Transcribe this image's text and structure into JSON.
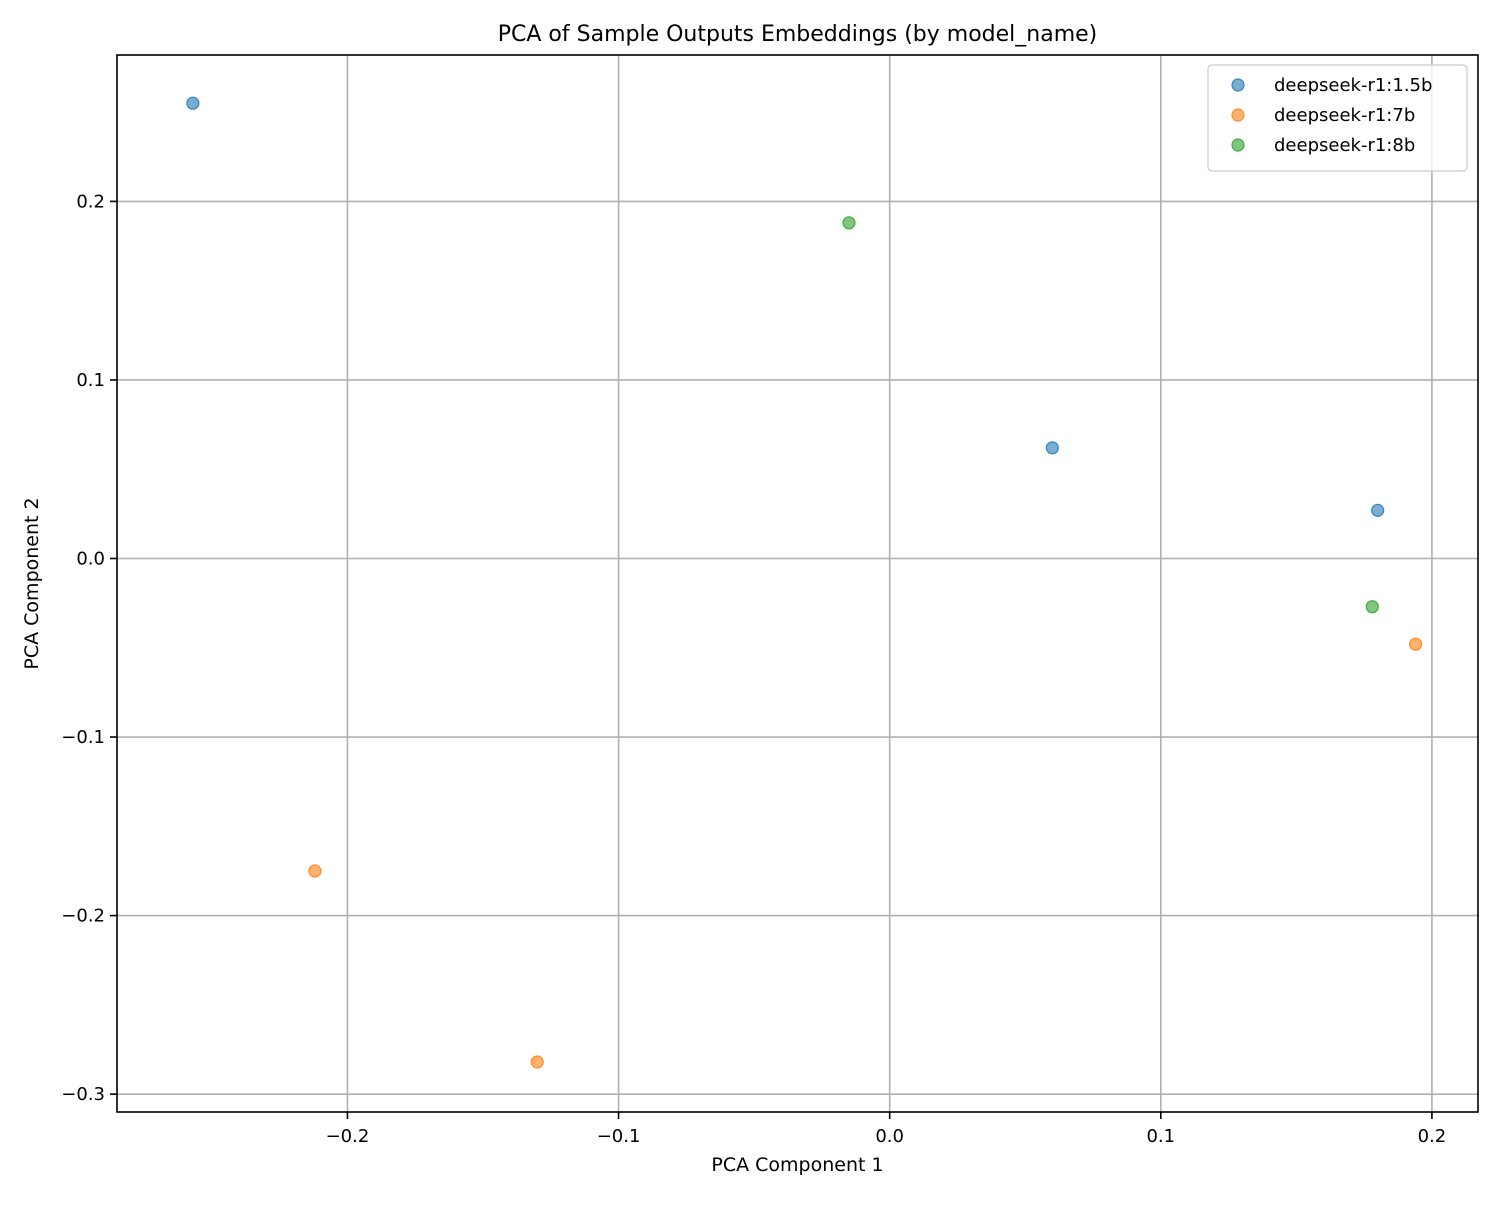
{
  "chart_data": {
    "type": "scatter",
    "title": "PCA of Sample Outputs Embeddings (by model_name)",
    "xlabel": "PCA Component 1",
    "ylabel": "PCA Component 2",
    "xlim": [
      -0.285,
      0.217
    ],
    "ylim": [
      -0.31,
      0.282
    ],
    "xticks": [
      -0.2,
      -0.1,
      0.0,
      0.1,
      0.2
    ],
    "xtick_labels": [
      "−0.2",
      "−0.1",
      "0.0",
      "0.1",
      "0.2"
    ],
    "yticks": [
      -0.3,
      -0.2,
      -0.1,
      0.0,
      0.1,
      0.2
    ],
    "ytick_labels": [
      "−0.3",
      "−0.2",
      "−0.1",
      "0.0",
      "0.1",
      "0.2"
    ],
    "grid": true,
    "legend_position": "top-right",
    "series": [
      {
        "name": "deepseek-r1:1.5b",
        "color": "#1f77b4",
        "points": [
          {
            "x": -0.257,
            "y": 0.255
          },
          {
            "x": 0.06,
            "y": 0.062
          },
          {
            "x": 0.18,
            "y": 0.027
          }
        ]
      },
      {
        "name": "deepseek-r1:7b",
        "color": "#ff7f0e",
        "points": [
          {
            "x": -0.212,
            "y": -0.175
          },
          {
            "x": -0.13,
            "y": -0.282
          },
          {
            "x": 0.194,
            "y": -0.048
          }
        ]
      },
      {
        "name": "deepseek-r1:8b",
        "color": "#2ca02c",
        "points": [
          {
            "x": -0.015,
            "y": 0.188
          },
          {
            "x": 0.178,
            "y": -0.027
          }
        ]
      }
    ]
  }
}
